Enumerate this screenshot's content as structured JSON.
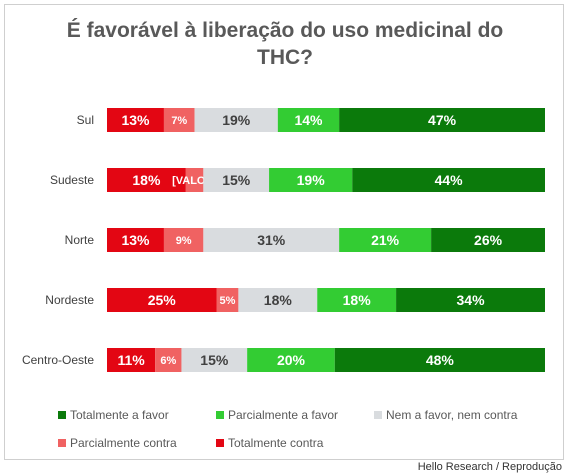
{
  "chart_data": {
    "type": "bar",
    "orientation": "horizontal",
    "stacked": "100%",
    "title": "É favorável à liberação do uso medicinal do THC?",
    "title_lines": [
      "É favorável à liberação do uso medicinal do",
      "THC?"
    ],
    "categories": [
      "Sul",
      "Sudeste",
      "Norte",
      "Nordeste",
      "Centro-Oeste"
    ],
    "series": [
      {
        "name": "Totalmente contra",
        "color": "#e30613",
        "values": [
          13,
          18,
          13,
          25,
          11
        ],
        "labels": [
          "13%",
          "18%",
          "13%",
          "25%",
          "11%"
        ]
      },
      {
        "name": "Parcialmente contra",
        "color": "#f06262",
        "values": [
          7,
          4,
          9,
          5,
          6
        ],
        "labels": [
          "7%",
          "[VALOR]",
          "9%",
          "5%",
          "6%"
        ]
      },
      {
        "name": "Nem a favor, nem contra",
        "color": "#d9dcdf",
        "values": [
          19,
          15,
          31,
          18,
          15
        ],
        "labels": [
          "19%",
          "15%",
          "31%",
          "18%",
          "15%"
        ]
      },
      {
        "name": "Parcialmente a favor",
        "color": "#33cc33",
        "values": [
          14,
          19,
          21,
          18,
          20
        ],
        "labels": [
          "14%",
          "19%",
          "21%",
          "18%",
          "20%"
        ]
      },
      {
        "name": "Totalmente a favor",
        "color": "#0b7a0b",
        "values": [
          47,
          44,
          26,
          34,
          48
        ],
        "labels": [
          "47%",
          "44%",
          "26%",
          "34%",
          "48%"
        ]
      }
    ],
    "legend_order": [
      "Totalmente a favor",
      "Parcialmente a favor",
      "Nem a favor, nem contra",
      "Parcialmente contra",
      "Totalmente contra"
    ],
    "legend_position": "bottom",
    "grid": false
  },
  "credit": "Hello Research / Reprodução"
}
